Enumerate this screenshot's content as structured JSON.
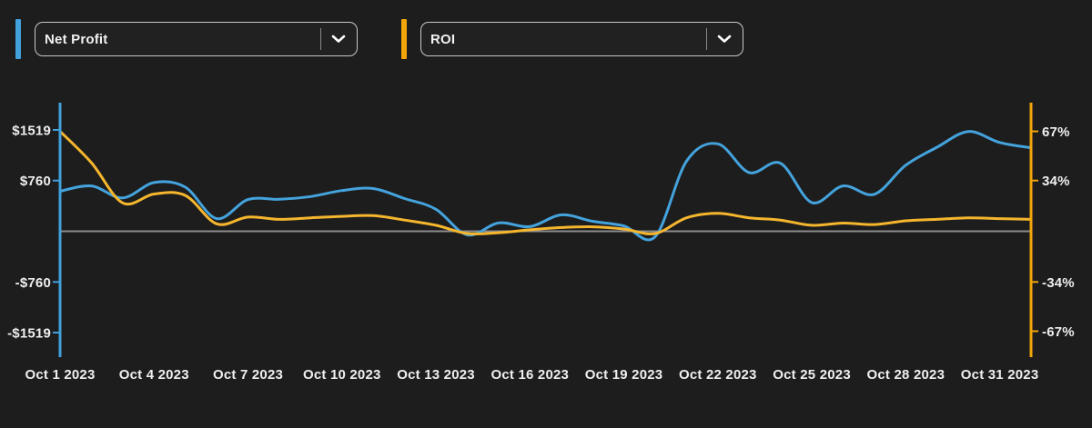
{
  "controls": {
    "selectors": [
      {
        "label": "Net Profit",
        "accent_color": "#42a0dc"
      },
      {
        "label": "ROI",
        "accent_color": "#f2a60a"
      }
    ],
    "chevron_icon": "chevron-down"
  },
  "chart_data": {
    "type": "line",
    "x": [
      "Oct 1 2023",
      "Oct 2 2023",
      "Oct 3 2023",
      "Oct 4 2023",
      "Oct 5 2023",
      "Oct 6 2023",
      "Oct 7 2023",
      "Oct 8 2023",
      "Oct 9 2023",
      "Oct 10 2023",
      "Oct 11 2023",
      "Oct 12 2023",
      "Oct 13 2023",
      "Oct 14 2023",
      "Oct 15 2023",
      "Oct 16 2023",
      "Oct 17 2023",
      "Oct 18 2023",
      "Oct 19 2023",
      "Oct 20 2023",
      "Oct 21 2023",
      "Oct 22 2023",
      "Oct 23 2023",
      "Oct 24 2023",
      "Oct 25 2023",
      "Oct 26 2023",
      "Oct 27 2023",
      "Oct 28 2023",
      "Oct 29 2023",
      "Oct 30 2023",
      "Oct 31 2023",
      "Nov 1 2023"
    ],
    "x_ticks": [
      {
        "index": 0,
        "label": "Oct 1 2023"
      },
      {
        "index": 3,
        "label": "Oct 4 2023"
      },
      {
        "index": 6,
        "label": "Oct 7 2023"
      },
      {
        "index": 9,
        "label": "Oct 10 2023"
      },
      {
        "index": 12,
        "label": "Oct 13 2023"
      },
      {
        "index": 15,
        "label": "Oct 16 2023"
      },
      {
        "index": 18,
        "label": "Oct 19 2023"
      },
      {
        "index": 21,
        "label": "Oct 22 2023"
      },
      {
        "index": 24,
        "label": "Oct 25 2023"
      },
      {
        "index": 27,
        "label": "Oct 28 2023"
      },
      {
        "index": 30,
        "label": "Oct 31 2023"
      }
    ],
    "series": [
      {
        "name": "Net Profit",
        "axis": "left",
        "color": "#44a3dd",
        "values": [
          600,
          680,
          500,
          730,
          660,
          190,
          475,
          480,
          520,
          610,
          640,
          490,
          330,
          -55,
          125,
          70,
          245,
          150,
          80,
          -80,
          1050,
          1310,
          880,
          1020,
          430,
          680,
          555,
          990,
          1260,
          1495,
          1330,
          1250
        ]
      },
      {
        "name": "ROI",
        "axis": "right",
        "color": "#f5b62e",
        "values": [
          67,
          46,
          19,
          25,
          24,
          5,
          9.5,
          8,
          9,
          10,
          10.5,
          7.5,
          4,
          -1.5,
          -1,
          1,
          2.5,
          3,
          1.5,
          -1.5,
          9,
          12,
          9,
          7.5,
          4,
          5.5,
          4.5,
          7,
          8,
          9,
          8.5,
          8
        ]
      }
    ],
    "left_axis": {
      "color": "#42a0dc",
      "tick_step": 760,
      "ticks": [
        {
          "label": "$1519",
          "value": 1519
        },
        {
          "label": "$760",
          "value": 760
        },
        {
          "label": "-$760",
          "value": -760
        },
        {
          "label": "-$1519",
          "value": -1519
        }
      ]
    },
    "right_axis": {
      "color": "#f2a60a",
      "tick_step": 34,
      "ticks": [
        {
          "label": "67%",
          "value": 67
        },
        {
          "label": "34%",
          "value": 34
        },
        {
          "label": "-34%",
          "value": -34
        },
        {
          "label": "-67%",
          "value": -67
        }
      ]
    },
    "zero_line_color": "#8c8c8c",
    "background_color": "#1d1d1d",
    "grid": "off",
    "legend_position": "none"
  }
}
